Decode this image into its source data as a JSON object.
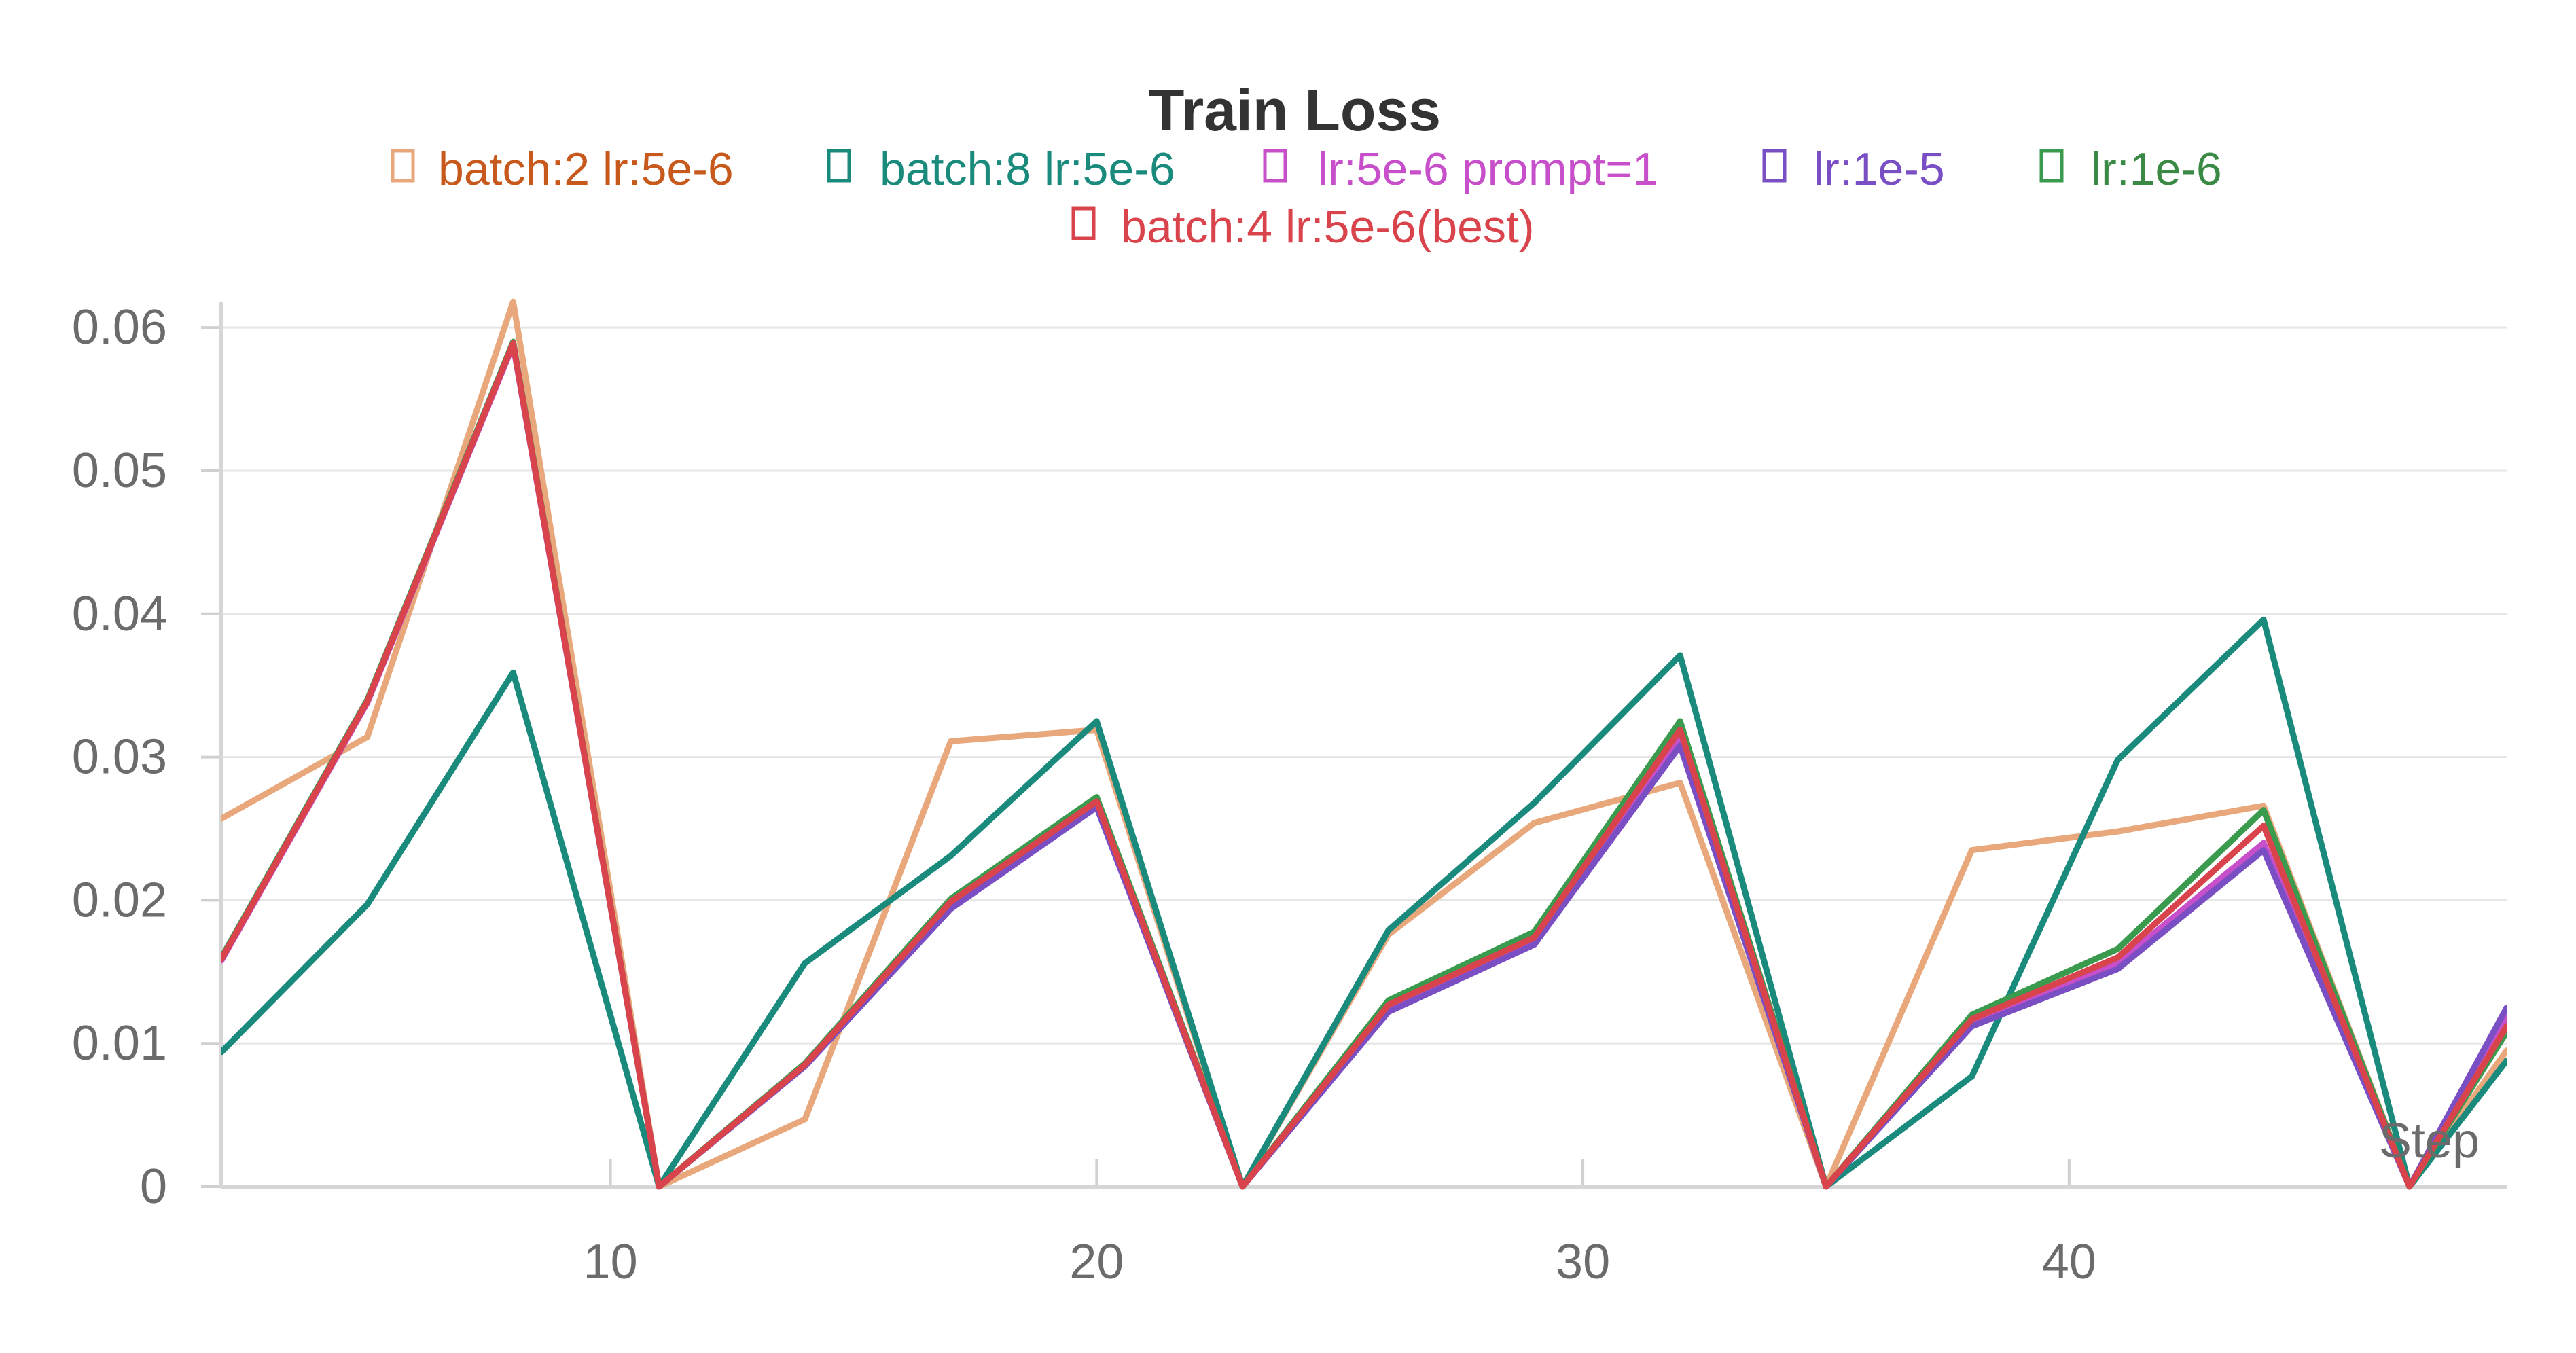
{
  "chart_data": {
    "type": "line",
    "title": "Train Loss",
    "xlabel": "Step",
    "ylabel": "",
    "xlim": [
      2,
      49
    ],
    "ylim": [
      0,
      0.062
    ],
    "x_ticks": [
      10,
      20,
      30,
      40
    ],
    "x_tick_labels": [
      "10",
      "20",
      "30",
      "40"
    ],
    "y_ticks": [
      0,
      0.01,
      0.02,
      0.03,
      0.04,
      0.05,
      0.06
    ],
    "y_tick_labels": [
      "0",
      "0.01",
      "0.02",
      "0.03",
      "0.04",
      "0.05",
      "0.06"
    ],
    "grid": "horizontal",
    "legend_position": "top-center",
    "series": [
      {
        "name": "batch:2 lr:5e-6",
        "color": "#e8a87c",
        "text_color": "#c8591c",
        "x": [
          2,
          5,
          8,
          11,
          14,
          17,
          20,
          23,
          26,
          29,
          32,
          35,
          38,
          41,
          44,
          47,
          49
        ],
        "y": [
          0.0257,
          0.0314,
          0.0618,
          0.0,
          0.0047,
          0.0311,
          0.0319,
          0.0,
          0.0176,
          0.0254,
          0.0282,
          0.0,
          0.0235,
          0.0248,
          0.0266,
          0.0,
          0.0095
        ]
      },
      {
        "name": "batch:8 lr:5e-6",
        "color": "#1a8a7c",
        "text_color": "#1a8a7c",
        "x": [
          2,
          5,
          8,
          11,
          14,
          17,
          20,
          23,
          26,
          29,
          32,
          35,
          38,
          41,
          44,
          47,
          49
        ],
        "y": [
          0.0094,
          0.0197,
          0.0359,
          0.0,
          0.0156,
          0.0231,
          0.0325,
          0.0,
          0.0179,
          0.0268,
          0.0371,
          0.0,
          0.0077,
          0.0298,
          0.0396,
          0.0,
          0.0088
        ]
      },
      {
        "name": "lr:5e-6 prompt=1",
        "color": "#c74fc9",
        "text_color": "#c74fc9",
        "x": [
          2,
          5,
          8,
          11,
          14,
          17,
          20,
          23,
          26,
          29,
          32,
          35,
          38,
          41,
          44,
          47,
          49
        ],
        "y": [
          0.0158,
          0.0338,
          0.0588,
          0.0,
          0.0085,
          0.0196,
          0.0266,
          0.0,
          0.0124,
          0.017,
          0.0312,
          0.0,
          0.0114,
          0.0156,
          0.024,
          0.0,
          0.0118
        ]
      },
      {
        "name": "lr:1e-5",
        "color": "#7b4fc4",
        "text_color": "#7b4fc4",
        "x": [
          2,
          5,
          8,
          11,
          14,
          17,
          20,
          23,
          26,
          29,
          32,
          35,
          38,
          41,
          44,
          47,
          49
        ],
        "y": [
          0.0159,
          0.0339,
          0.0589,
          0.0,
          0.0084,
          0.0194,
          0.0265,
          0.0,
          0.0122,
          0.0169,
          0.0308,
          0.0,
          0.0112,
          0.0152,
          0.0235,
          0.0,
          0.0125
        ]
      },
      {
        "name": "lr:1e-6",
        "color": "#3a9a4e",
        "text_color": "#3a8a45",
        "x": [
          2,
          5,
          8,
          11,
          14,
          17,
          20,
          23,
          26,
          29,
          32,
          35,
          38,
          41,
          44,
          47,
          49
        ],
        "y": [
          0.016,
          0.034,
          0.059,
          0.0,
          0.0086,
          0.0201,
          0.0272,
          0.0,
          0.013,
          0.0178,
          0.0325,
          0.0,
          0.012,
          0.0166,
          0.0263,
          0.0,
          0.0108
        ]
      },
      {
        "name": "batch:4 lr:5e-6(best)",
        "color": "#d9434b",
        "text_color": "#d9434b",
        "x": [
          2,
          5,
          8,
          11,
          14,
          17,
          20,
          23,
          26,
          29,
          32,
          35,
          38,
          41,
          44,
          47,
          49
        ],
        "y": [
          0.0159,
          0.0339,
          0.0589,
          0.0,
          0.0085,
          0.0199,
          0.0269,
          0.0,
          0.0127,
          0.0174,
          0.0319,
          0.0,
          0.0117,
          0.016,
          0.0252,
          0.0,
          0.0112
        ]
      }
    ]
  }
}
